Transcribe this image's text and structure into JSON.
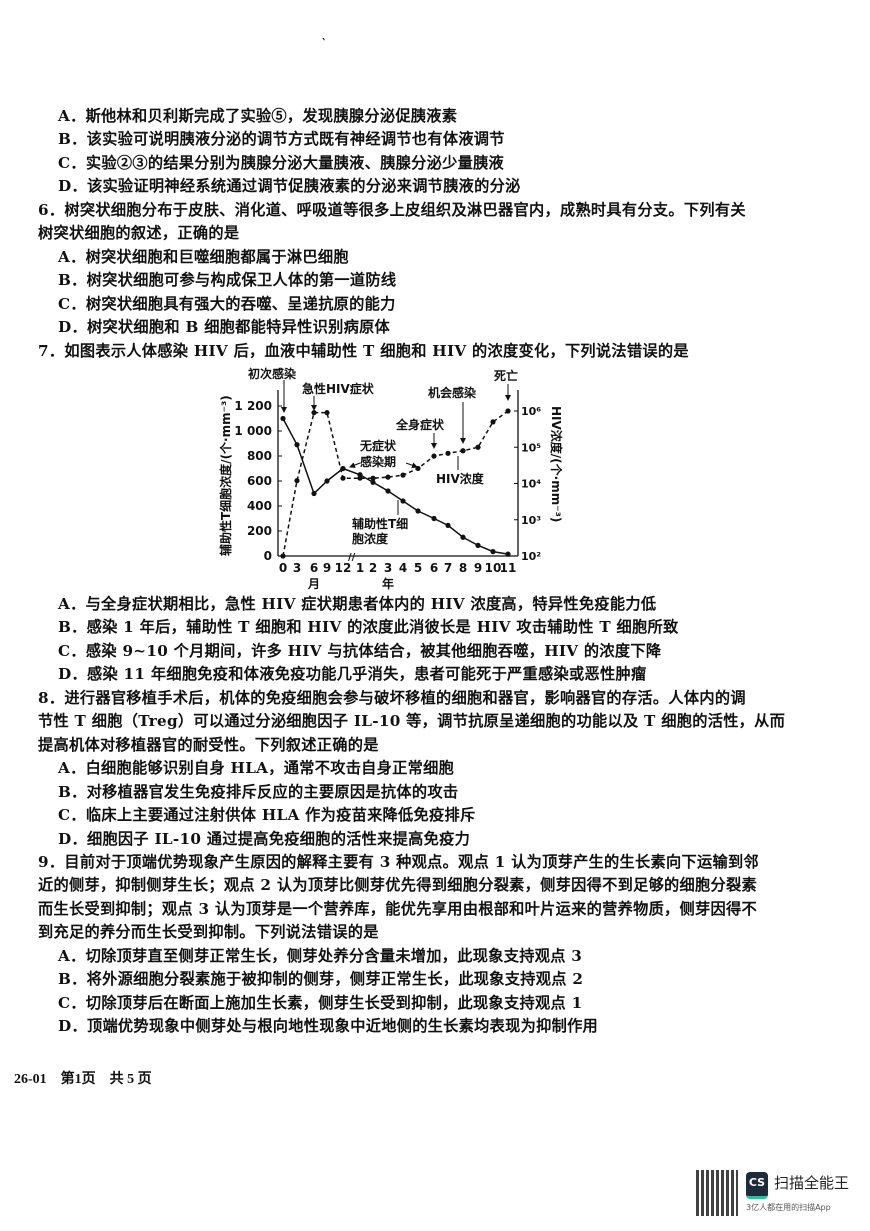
{
  "top_mark": "‵",
  "q5_options": [
    "A．斯他林和贝利斯完成了实验⑤，发现胰腺分泌促胰液素",
    "B．该实验可说明胰液分泌的调节方式既有神经调节也有体液调节",
    "C．实验②③的结果分别为胰腺分泌大量胰液、胰腺分泌少量胰液",
    "D．该实验证明神经系统通过调节促胰液素的分泌来调节胰液的分泌"
  ],
  "q6": {
    "stem": [
      "6．树突状细胞分布于皮肤、消化道、呼吸道等很多上皮组织及淋巴器官内，成熟时具有分支。下列有关",
      "树突状细胞的叙述，正确的是"
    ],
    "options": [
      "A．树突状细胞和巨噬细胞都属于淋巴细胞",
      "B．树突状细胞可参与构成保卫人体的第一道防线",
      "C．树突状细胞具有强大的吞噬、呈递抗原的能力",
      "D．树突状细胞和 B 细胞都能特异性识别病原体"
    ]
  },
  "q7": {
    "stem": [
      "7．如图表示人体感染 HIV 后，血液中辅助性 T 细胞和 HIV 的浓度变化，下列说法错误的是"
    ],
    "options": [
      "A．与全身症状期相比，急性 HIV 症状期患者体内的 HIV 浓度高，特异性免疫能力低",
      "B．感染 1 年后，辅助性 T 细胞和 HIV 的浓度此消彼长是 HIV 攻击辅助性 T 细胞所致",
      "C．感染 9~10 个月期间，许多 HIV 与抗体结合，被其他细胞吞噬，HIV 的浓度下降",
      "D．感染 11 年细胞免疫和体液免疫功能几乎消失，患者可能死于严重感染或恶性肿瘤"
    ]
  },
  "q8": {
    "stem": [
      "8．进行器官移植手术后，机体的免疫细胞会参与破坏移植的细胞和器官，影响器官的存活。人体内的调",
      "节性 T 细胞（Treg）可以通过分泌细胞因子 IL-10 等，调节抗原呈递细胞的功能以及 T 细胞的活性，从而",
      "提高机体对移植器官的耐受性。下列叙述正确的是"
    ],
    "options": [
      "A．白细胞能够识别自身 HLA，通常不攻击自身正常细胞",
      "B．对移植器官发生免疫排斥反应的主要原因是抗体的攻击",
      "C．临床上主要通过注射供体 HLA 作为疫苗来降低免疫排斥",
      "D．细胞因子 IL-10 通过提高免疫细胞的活性来提高免疫力"
    ]
  },
  "q9": {
    "stem": [
      "9．目前对于顶端优势现象产生原因的解释主要有 3 种观点。观点 1 认为顶芽产生的生长素向下运输到邻",
      "近的侧芽，抑制侧芽生长；观点 2 认为顶芽比侧芽优先得到细胞分裂素，侧芽因得不到足够的细胞分裂素",
      "而生长受到抑制；观点 3 认为顶芽是一个营养库，能优先享用由根部和叶片运来的营养物质，侧芽因得不",
      "到充足的养分而生长受到抑制。下列说法错误的是"
    ],
    "options": [
      "A．切除顶芽直至侧芽正常生长，侧芽处养分含量未增加，此现象支持观点 3",
      "B．将外源细胞分裂素施于被抑制的侧芽，侧芽正常生长，此现象支持观点 2",
      "C．切除顶芽后在断面上施加生长素，侧芽生长受到抑制，此现象支持观点 1",
      "D．顶端优势现象中侧芽处与根向地性现象中近地侧的生长素均表现为抑制作用"
    ]
  },
  "footer": "26-01　第1页　共 5 页",
  "watermark": {
    "brand": "扫描全能王",
    "logo": "CS",
    "slogan": "3亿人都在用的扫描App",
    "accent": "#2cc09a"
  },
  "chart_data": {
    "type": "line",
    "ylabel_left": "辅助性T细胞浓度/(个·mm⁻³)",
    "ylabel_right": "HIV浓度/(个·mm⁻³)",
    "x_ticks": [
      "0",
      "3",
      "6",
      "9",
      "12",
      "1",
      "2",
      "3",
      "4",
      "5",
      "6",
      "7",
      "8",
      "9",
      "10",
      "11"
    ],
    "x_unit_months": "月",
    "x_unit_years": "年",
    "y_left_ticks": [
      "0",
      "200",
      "400",
      "600",
      "800",
      "1 000",
      "1 200"
    ],
    "y_left_range": [
      0,
      1200
    ],
    "y_right_ticks": [
      "10²",
      "10³",
      "10⁴",
      "10⁵",
      "10⁶"
    ],
    "y_right_scale": "log",
    "series": [
      {
        "name": "辅助性T细胞浓度",
        "name_lines": [
          "辅助性T细",
          "胞浓度"
        ],
        "style": "solid",
        "values": [
          1100,
          890,
          500,
          600,
          700,
          650,
          590,
          520,
          440,
          360,
          300,
          245,
          150,
          85,
          35,
          15
        ]
      },
      {
        "name": "HIV浓度",
        "style": "dashed",
        "values": [
          100,
          12000,
          900000,
          900000,
          14000,
          14000,
          14000,
          15000,
          17000,
          26000,
          57000,
          68000,
          80000,
          100000,
          500000,
          1000000
        ]
      }
    ],
    "annotations": {
      "first_infection": "初次感染",
      "acute": "急性HIV症状",
      "asymptomatic": [
        "无症状",
        "感染期"
      ],
      "systemic": "全身症状",
      "opportunistic": "机会感染",
      "death": "死亡"
    }
  }
}
